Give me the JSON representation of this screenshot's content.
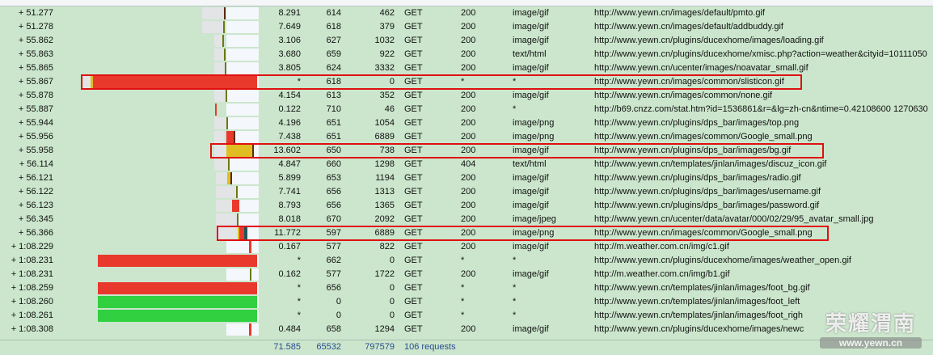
{
  "rows": [
    {
      "time": "+ 51.277",
      "duration": "8.291",
      "sent": "614",
      "received": "462",
      "method": "GET",
      "status": "200",
      "type": "image/gif",
      "url": "http://www.yewn.cn/images/default/pmto.gif"
    },
    {
      "time": "+ 51.278",
      "duration": "7.649",
      "sent": "618",
      "received": "379",
      "method": "GET",
      "status": "200",
      "type": "image/gif",
      "url": "http://www.yewn.cn/images/default/addbuddy.gif"
    },
    {
      "time": "+ 55.862",
      "duration": "3.106",
      "sent": "627",
      "received": "1032",
      "method": "GET",
      "status": "200",
      "type": "image/gif",
      "url": "http://www.yewn.cn/plugins/ducexhome/images/loading.gif"
    },
    {
      "time": "+ 55.863",
      "duration": "3.680",
      "sent": "659",
      "received": "922",
      "method": "GET",
      "status": "200",
      "type": "text/html",
      "url": "http://www.yewn.cn/plugins/ducexhome/xmisc.php?action=weather&cityid=10111050"
    },
    {
      "time": "+ 55.865",
      "duration": "3.805",
      "sent": "624",
      "received": "3332",
      "method": "GET",
      "status": "200",
      "type": "image/gif",
      "url": "http://www.yewn.cn/ucenter/images/noavatar_small.gif"
    },
    {
      "time": "+ 55.867",
      "duration": "*",
      "sent": "618",
      "received": "0",
      "method": "GET",
      "status": "*",
      "type": "*",
      "url": "http://www.yewn.cn/images/common/slisticon.gif"
    },
    {
      "time": "+ 55.878",
      "duration": "4.154",
      "sent": "613",
      "received": "352",
      "method": "GET",
      "status": "200",
      "type": "image/gif",
      "url": "http://www.yewn.cn/images/common/none.gif"
    },
    {
      "time": "+ 55.887",
      "duration": "0.122",
      "sent": "710",
      "received": "46",
      "method": "GET",
      "status": "200",
      "type": "*",
      "url": "http://b69.cnzz.com/stat.htm?id=1536861&r=&lg=zh-cn&ntime=0.42108600 1270630"
    },
    {
      "time": "+ 55.944",
      "duration": "4.196",
      "sent": "651",
      "received": "1054",
      "method": "GET",
      "status": "200",
      "type": "image/png",
      "url": "http://www.yewn.cn/plugins/dps_bar/images/top.png"
    },
    {
      "time": "+ 55.956",
      "duration": "7.438",
      "sent": "651",
      "received": "6889",
      "method": "GET",
      "status": "200",
      "type": "image/png",
      "url": "http://www.yewn.cn/images/common/Google_small.png"
    },
    {
      "time": "+ 55.958",
      "duration": "13.602",
      "sent": "650",
      "received": "738",
      "method": "GET",
      "status": "200",
      "type": "image/gif",
      "url": "http://www.yewn.cn/plugins/dps_bar/images/bg.gif"
    },
    {
      "time": "+ 56.114",
      "duration": "4.847",
      "sent": "660",
      "received": "1298",
      "method": "GET",
      "status": "404",
      "type": "text/html",
      "url": "http://www.yewn.cn/templates/jinlan/images/discuz_icon.gif"
    },
    {
      "time": "+ 56.121",
      "duration": "5.899",
      "sent": "653",
      "received": "1194",
      "method": "GET",
      "status": "200",
      "type": "image/gif",
      "url": "http://www.yewn.cn/plugins/dps_bar/images/radio.gif"
    },
    {
      "time": "+ 56.122",
      "duration": "7.741",
      "sent": "656",
      "received": "1313",
      "method": "GET",
      "status": "200",
      "type": "image/gif",
      "url": "http://www.yewn.cn/plugins/dps_bar/images/username.gif"
    },
    {
      "time": "+ 56.123",
      "duration": "8.793",
      "sent": "656",
      "received": "1365",
      "method": "GET",
      "status": "200",
      "type": "image/gif",
      "url": "http://www.yewn.cn/plugins/dps_bar/images/password.gif"
    },
    {
      "time": "+ 56.345",
      "duration": "8.018",
      "sent": "670",
      "received": "2092",
      "method": "GET",
      "status": "200",
      "type": "image/jpeg",
      "url": "http://www.yewn.cn/ucenter/data/avatar/000/02/29/95_avatar_small.jpg"
    },
    {
      "time": "+ 56.366",
      "duration": "11.772",
      "sent": "597",
      "received": "6889",
      "method": "GET",
      "status": "200",
      "type": "image/png",
      "url": "http://www.yewn.cn/images/common/Google_small.png"
    },
    {
      "time": "+ 1:08.229",
      "duration": "0.167",
      "sent": "577",
      "received": "822",
      "method": "GET",
      "status": "200",
      "type": "image/gif",
      "url": "http://m.weather.com.cn/img/c1.gif"
    },
    {
      "time": "+ 1:08.231",
      "duration": "*",
      "sent": "662",
      "received": "0",
      "method": "GET",
      "status": "*",
      "type": "*",
      "url": "http://www.yewn.cn/plugins/ducexhome/images/weather_open.gif"
    },
    {
      "time": "+ 1:08.231",
      "duration": "0.162",
      "sent": "577",
      "received": "1722",
      "method": "GET",
      "status": "200",
      "type": "image/gif",
      "url": "http://m.weather.com.cn/img/b1.gif"
    },
    {
      "time": "+ 1:08.259",
      "duration": "*",
      "sent": "656",
      "received": "0",
      "method": "GET",
      "status": "*",
      "type": "*",
      "url": "http://www.yewn.cn/templates/jinlan/images/foot_bg.gif"
    },
    {
      "time": "+ 1:08.260",
      "duration": "*",
      "sent": "0",
      "received": "0",
      "method": "GET",
      "status": "*",
      "type": "*",
      "url": "http://www.yewn.cn/templates/jinlan/images/foot_left"
    },
    {
      "time": "+ 1:08.261",
      "duration": "*",
      "sent": "0",
      "received": "0",
      "method": "GET",
      "status": "*",
      "type": "*",
      "url": "http://www.yewn.cn/templates/jinlan/images/foot_righ"
    },
    {
      "time": "+ 1:08.308",
      "duration": "0.484",
      "sent": "658",
      "received": "1294",
      "method": "GET",
      "status": "200",
      "type": "image/gif",
      "url": "http://www.yewn.cn/plugins/ducexhome/images/newc"
    }
  ],
  "totals": {
    "duration": "71.585",
    "sent": "65532",
    "received": "797579",
    "requests": "106 requests"
  },
  "highlighted_rows": [
    5,
    10,
    16
  ],
  "colors": {
    "background": "#cbe6cc",
    "highlight": "#e01010",
    "blocked": "#e8392c",
    "wait": "#e8c020",
    "complete": "#2ccf3c"
  },
  "watermark": {
    "title": "荣耀渭南",
    "site": "www.yewn.cn"
  }
}
